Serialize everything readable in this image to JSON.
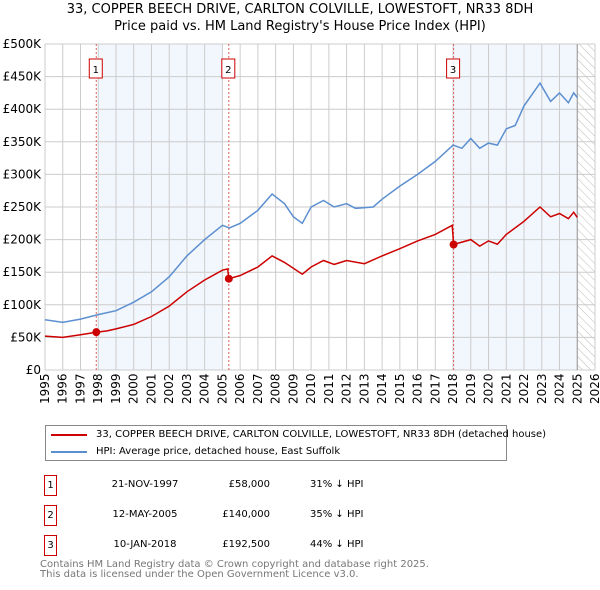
{
  "chart_data": {
    "type": "line",
    "title": "33, COPPER BEECH DRIVE, CARLTON COLVILLE, LOWESTOFT, NR33 8DH",
    "subtitle": "Price paid vs. HM Land Registry's House Price Index (HPI)",
    "xlim": [
      1995,
      2026
    ],
    "ylim": [
      0,
      500000
    ],
    "x_ticks": [
      "1995",
      "1996",
      "1997",
      "1998",
      "1999",
      "2000",
      "2001",
      "2002",
      "2003",
      "2004",
      "2005",
      "2006",
      "2007",
      "2008",
      "2009",
      "2010",
      "2011",
      "2012",
      "2013",
      "2014",
      "2015",
      "2016",
      "2017",
      "2018",
      "2019",
      "2020",
      "2021",
      "2022",
      "2023",
      "2024",
      "2025",
      "2026"
    ],
    "y_ticks": [
      {
        "v": 0,
        "label": "£0"
      },
      {
        "v": 50000,
        "label": "£50K"
      },
      {
        "v": 100000,
        "label": "£100K"
      },
      {
        "v": 150000,
        "label": "£150K"
      },
      {
        "v": 200000,
        "label": "£200K"
      },
      {
        "v": 250000,
        "label": "£250K"
      },
      {
        "v": 300000,
        "label": "£300K"
      },
      {
        "v": 350000,
        "label": "£350K"
      },
      {
        "v": 400000,
        "label": "£400K"
      },
      {
        "v": 450000,
        "label": "£450K"
      },
      {
        "v": 500000,
        "label": "£500K"
      }
    ],
    "grid": true,
    "series": [
      {
        "name": "33, COPPER BEECH DRIVE, CARLTON COLVILLE, LOWESTOFT, NR33 8DH (detached house)",
        "color": "#cc0000",
        "points": [
          [
            1995,
            52000
          ],
          [
            1996,
            50000
          ],
          [
            1997,
            54000
          ],
          [
            1997.89,
            58000
          ],
          [
            1998.5,
            60000
          ],
          [
            1999,
            63000
          ],
          [
            2000,
            70000
          ],
          [
            2001,
            82000
          ],
          [
            2002,
            98000
          ],
          [
            2003,
            120000
          ],
          [
            2004,
            138000
          ],
          [
            2005,
            153000
          ],
          [
            2005.3,
            155000
          ],
          [
            2005.36,
            140000
          ],
          [
            2006,
            145000
          ],
          [
            2007,
            158000
          ],
          [
            2007.8,
            175000
          ],
          [
            2008.5,
            165000
          ],
          [
            2009.5,
            147000
          ],
          [
            2010,
            158000
          ],
          [
            2010.7,
            168000
          ],
          [
            2011.3,
            162000
          ],
          [
            2012,
            168000
          ],
          [
            2013,
            163000
          ],
          [
            2014,
            175000
          ],
          [
            2015,
            186000
          ],
          [
            2016,
            198000
          ],
          [
            2017,
            208000
          ],
          [
            2017.95,
            222000
          ],
          [
            2018.03,
            192500
          ],
          [
            2019,
            200000
          ],
          [
            2019.5,
            190000
          ],
          [
            2020,
            198000
          ],
          [
            2020.5,
            193000
          ],
          [
            2021,
            208000
          ],
          [
            2022,
            228000
          ],
          [
            2022.9,
            250000
          ],
          [
            2023.5,
            235000
          ],
          [
            2024,
            240000
          ],
          [
            2024.5,
            232000
          ],
          [
            2024.8,
            242000
          ],
          [
            2025,
            234000
          ]
        ]
      },
      {
        "name": "HPI: Average price, detached house, East Suffolk",
        "color": "#5b8fd0",
        "points": [
          [
            1995,
            77000
          ],
          [
            1996,
            73000
          ],
          [
            1997,
            78000
          ],
          [
            1998,
            85000
          ],
          [
            1999,
            91000
          ],
          [
            2000,
            104000
          ],
          [
            2001,
            120000
          ],
          [
            2002,
            143000
          ],
          [
            2003,
            175000
          ],
          [
            2004,
            200000
          ],
          [
            2005,
            222000
          ],
          [
            2005.4,
            218000
          ],
          [
            2006,
            225000
          ],
          [
            2007,
            245000
          ],
          [
            2007.8,
            270000
          ],
          [
            2008.5,
            255000
          ],
          [
            2009,
            235000
          ],
          [
            2009.5,
            225000
          ],
          [
            2010,
            250000
          ],
          [
            2010.7,
            260000
          ],
          [
            2011.3,
            250000
          ],
          [
            2012,
            255000
          ],
          [
            2012.5,
            248000
          ],
          [
            2013.5,
            250000
          ],
          [
            2014,
            262000
          ],
          [
            2015,
            282000
          ],
          [
            2016,
            300000
          ],
          [
            2017,
            320000
          ],
          [
            2018,
            345000
          ],
          [
            2018.5,
            340000
          ],
          [
            2019,
            355000
          ],
          [
            2019.5,
            340000
          ],
          [
            2020,
            348000
          ],
          [
            2020.5,
            345000
          ],
          [
            2021,
            370000
          ],
          [
            2021.5,
            375000
          ],
          [
            2022,
            405000
          ],
          [
            2022.9,
            440000
          ],
          [
            2023.5,
            412000
          ],
          [
            2024,
            425000
          ],
          [
            2024.5,
            410000
          ],
          [
            2024.8,
            425000
          ],
          [
            2025,
            418000
          ]
        ]
      }
    ],
    "sales": [
      {
        "n": "1",
        "x": 1997.89,
        "price": 58000
      },
      {
        "n": "2",
        "x": 2005.36,
        "price": 140000
      },
      {
        "n": "3",
        "x": 2018.03,
        "price": 192500
      }
    ],
    "shaded_ranges": [
      [
        1998,
        2005
      ],
      [
        2018.03,
        2025
      ]
    ],
    "hatched_range": [
      2025,
      2026
    ],
    "legend_position": "below"
  },
  "legend": {
    "red": "33, COPPER BEECH DRIVE, CARLTON COLVILLE, LOWESTOFT, NR33 8DH (detached house)",
    "blue": "HPI: Average price, detached house, East Suffolk"
  },
  "sales_table": [
    {
      "n": "1",
      "date": "21-NOV-1997",
      "price": "£58,000",
      "hpi": "31% ↓ HPI"
    },
    {
      "n": "2",
      "date": "12-MAY-2005",
      "price": "£140,000",
      "hpi": "35% ↓ HPI"
    },
    {
      "n": "3",
      "date": "10-JAN-2018",
      "price": "£192,500",
      "hpi": "44% ↓ HPI"
    }
  ],
  "footer": {
    "line1": "Contains HM Land Registry data © Crown copyright and database right 2025.",
    "line2": "This data is licensed under the Open Government Licence v3.0."
  }
}
